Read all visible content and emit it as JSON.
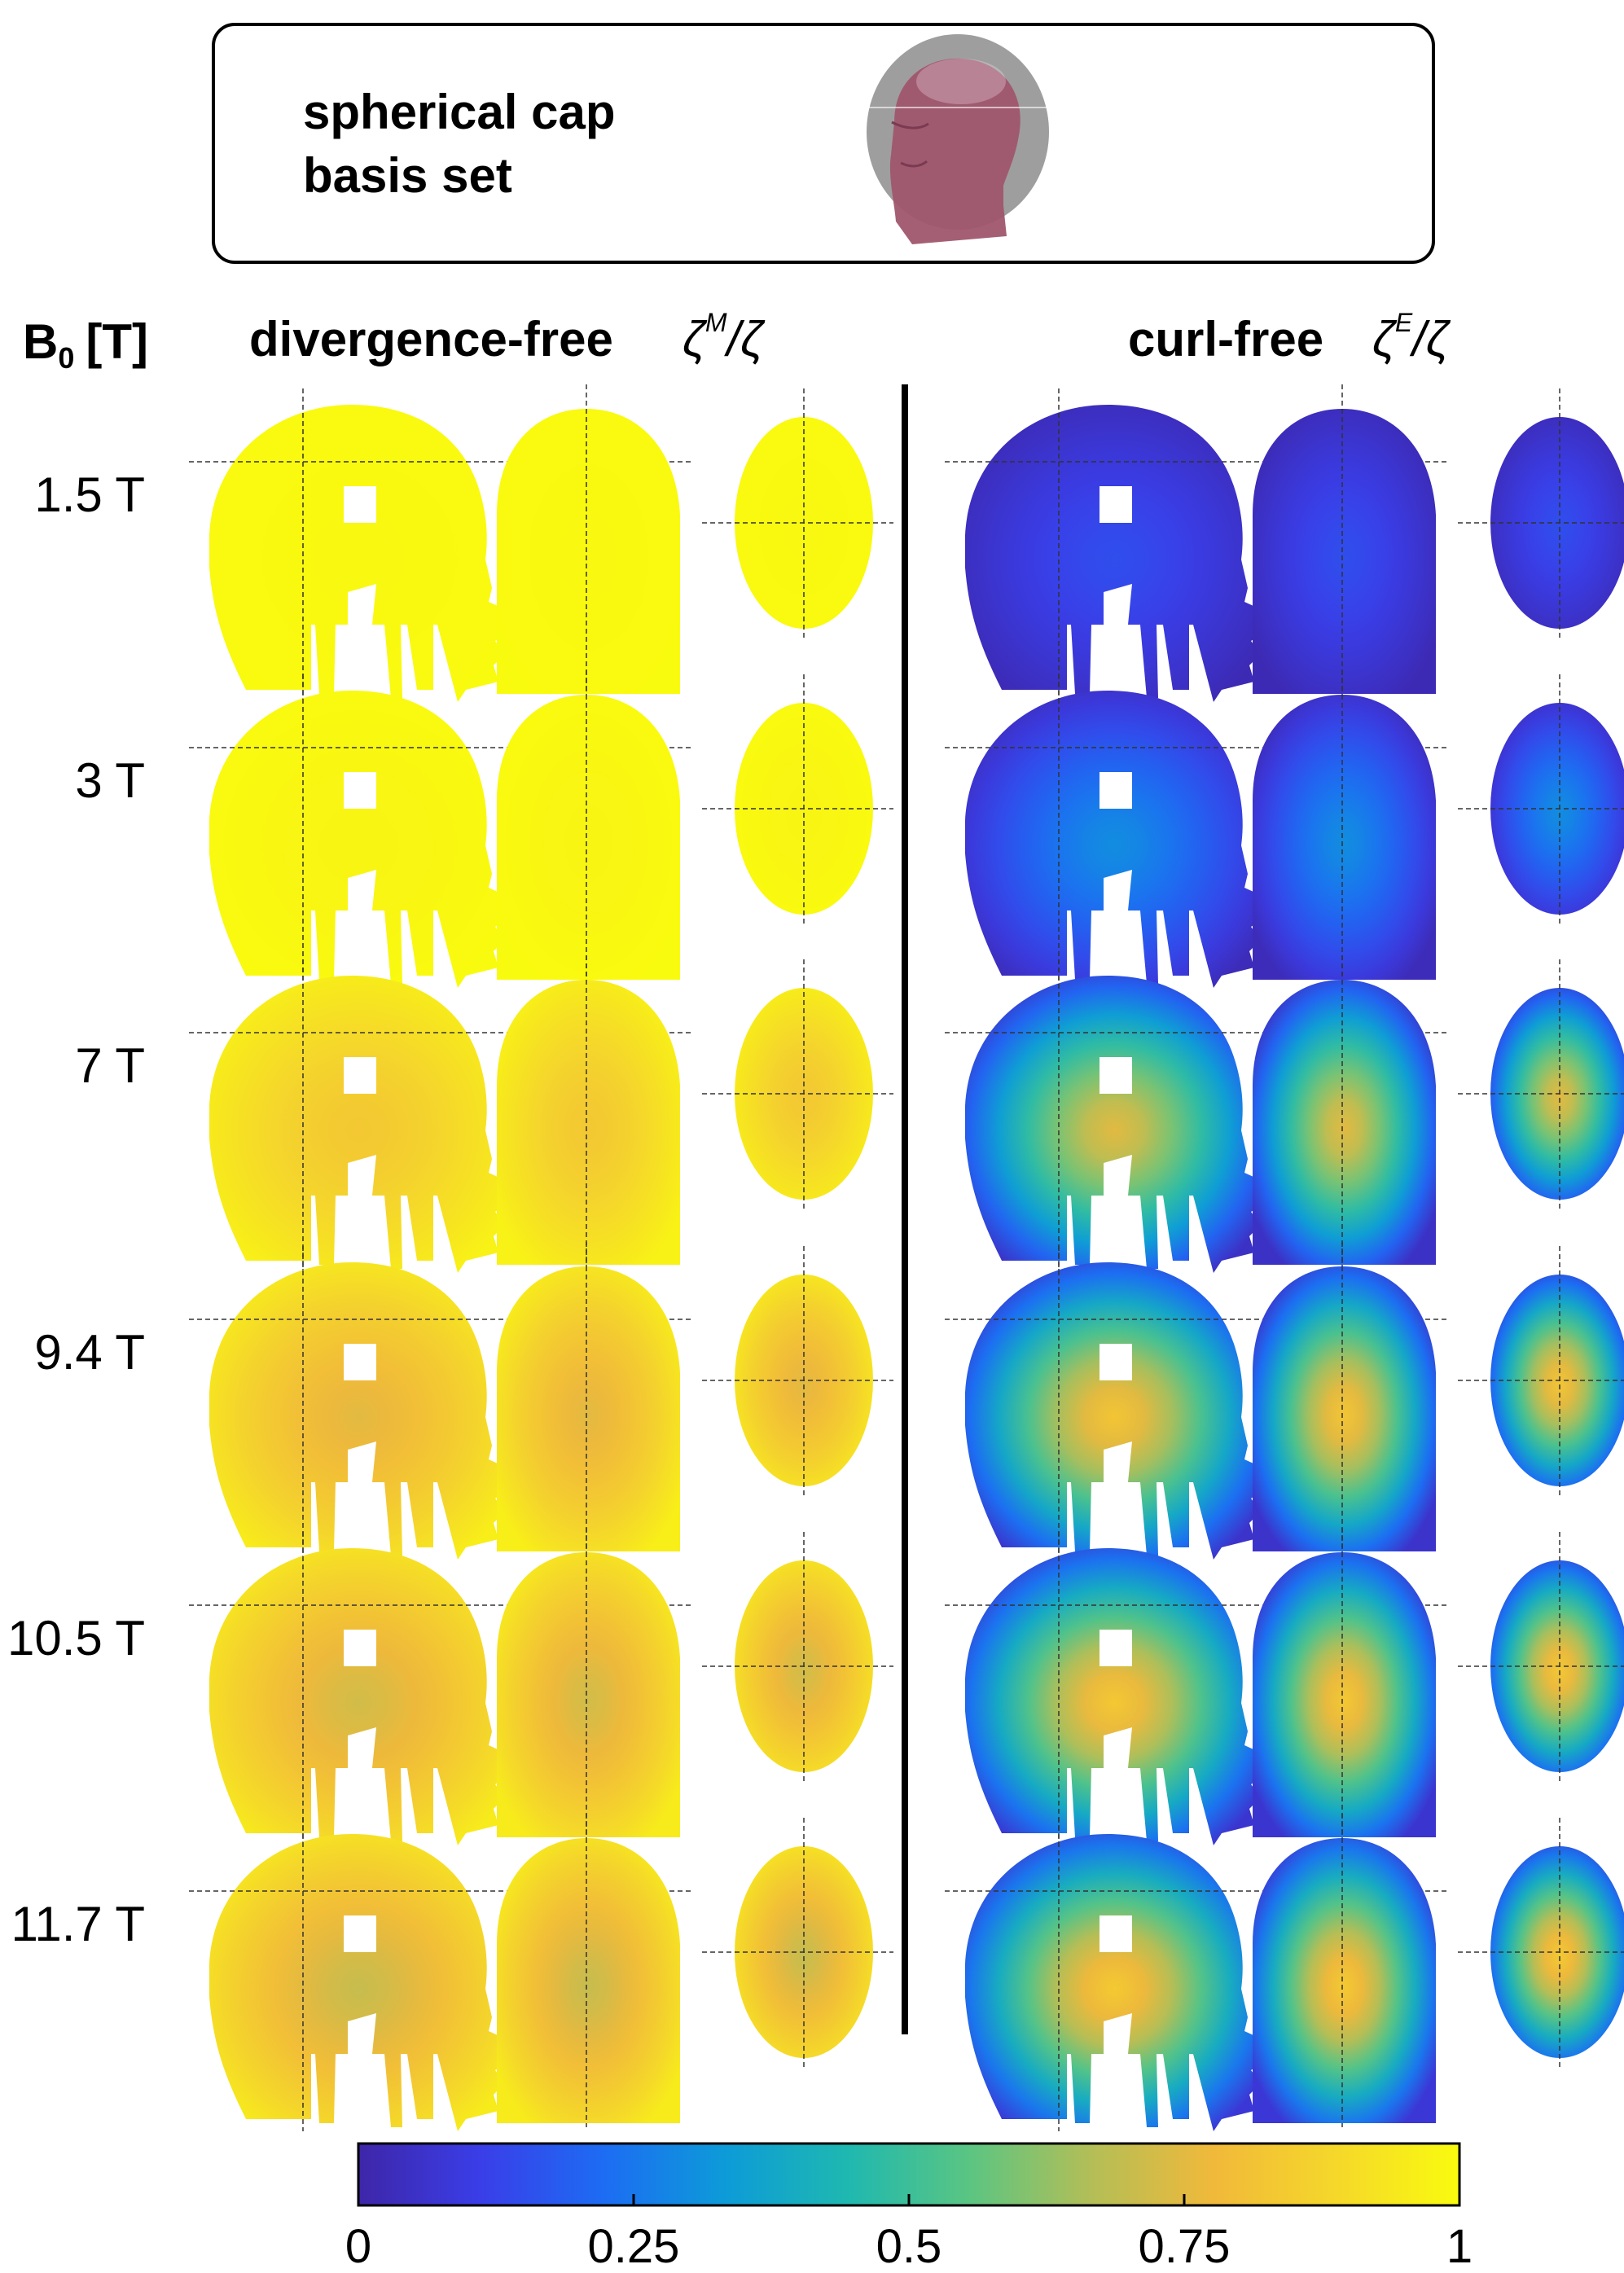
{
  "header_box": {
    "line1": "spherical cap",
    "line2": "basis set"
  },
  "row_header": {
    "main": "B",
    "subscript": "0",
    "unit": "[T]"
  },
  "panels": {
    "divergence_free": {
      "title": "divergence-free",
      "symbol": "ζ",
      "superscript": "M",
      "denominator": "/ζ"
    },
    "curl_free": {
      "title": "curl-free",
      "symbol": "ζ",
      "superscript": "E",
      "denominator": "/ζ"
    }
  },
  "colors": {
    "cmap": [
      "#3e26a8",
      "#3a3ee8",
      "#1d6cf3",
      "#0d9bd8",
      "#1fb8b0",
      "#5bc582",
      "#b4be56",
      "#f1b93a",
      "#f5d82a",
      "#f9fb0e"
    ],
    "divider": "#000000",
    "crosshair": "#333333",
    "head_skin": "#a0566e",
    "cap": "#7f7f7f"
  },
  "chart_data": {
    "type": "heatmap",
    "colorbar": {
      "range": [
        0,
        1
      ],
      "ticks": [
        "0",
        "0.25",
        "0.5",
        "0.75",
        "1"
      ]
    },
    "field_strengths": [
      "1.5 T",
      "3 T",
      "7 T",
      "9.4 T",
      "10.5 T",
      "11.7 T"
    ],
    "series": [
      {
        "name": "divergence-free",
        "center_values": [
          0.99,
          0.98,
          0.83,
          0.75,
          0.72,
          0.7
        ],
        "edge_values": [
          1.0,
          1.0,
          0.97,
          0.96,
          0.95,
          0.95
        ]
      },
      {
        "name": "curl-free",
        "center_values": [
          0.15,
          0.3,
          0.75,
          0.82,
          0.83,
          0.84
        ],
        "edge_values": [
          0.02,
          0.03,
          0.05,
          0.06,
          0.07,
          0.08
        ]
      }
    ]
  }
}
